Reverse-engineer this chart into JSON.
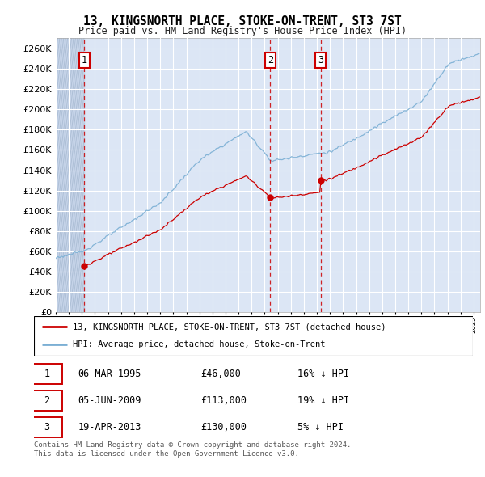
{
  "title": "13, KINGSNORTH PLACE, STOKE-ON-TRENT, ST3 7ST",
  "subtitle": "Price paid vs. HM Land Registry's House Price Index (HPI)",
  "ylim": [
    0,
    270000
  ],
  "yticks": [
    0,
    20000,
    40000,
    60000,
    80000,
    100000,
    120000,
    140000,
    160000,
    180000,
    200000,
    220000,
    240000,
    260000
  ],
  "background_color": "#dce6f5",
  "hatch_zone_color": "#c8d4e8",
  "grid_color": "#ffffff",
  "sale_years": [
    1995.18,
    2009.43,
    2013.3
  ],
  "sale_prices": [
    46000,
    113000,
    130000
  ],
  "sale_labels": [
    "1",
    "2",
    "3"
  ],
  "legend_line1": "13, KINGSNORTH PLACE, STOKE-ON-TRENT, ST3 7ST (detached house)",
  "legend_line2": "HPI: Average price, detached house, Stoke-on-Trent",
  "table_data": [
    [
      "1",
      "06-MAR-1995",
      "£46,000",
      "16% ↓ HPI"
    ],
    [
      "2",
      "05-JUN-2009",
      "£113,000",
      "19% ↓ HPI"
    ],
    [
      "3",
      "19-APR-2013",
      "£130,000",
      "5% ↓ HPI"
    ]
  ],
  "footer": "Contains HM Land Registry data © Crown copyright and database right 2024.\nThis data is licensed under the Open Government Licence v3.0.",
  "red_color": "#cc0000",
  "blue_color": "#7bafd4",
  "xmin": 1993,
  "xmax": 2025.5,
  "hatch_end": 1995.18
}
